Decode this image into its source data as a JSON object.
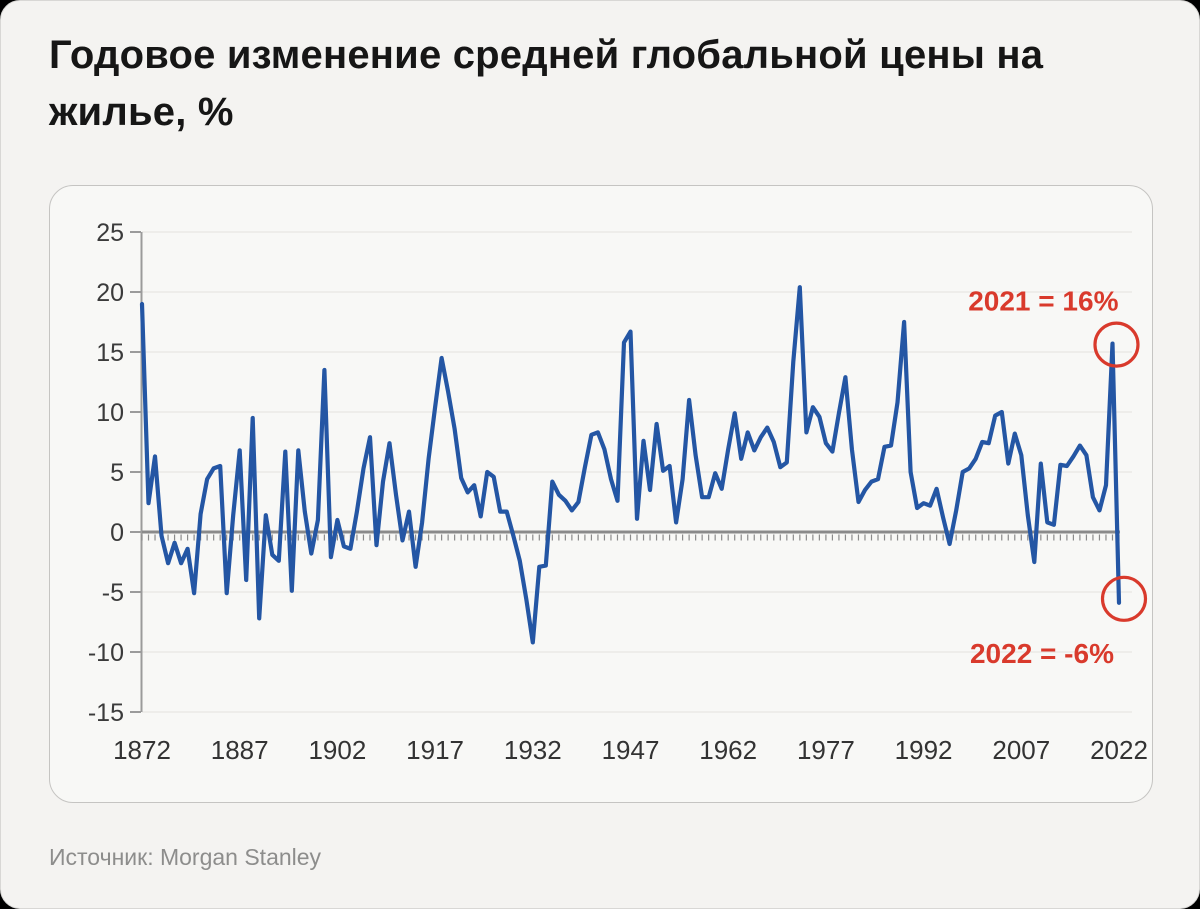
{
  "page": {
    "title": "Годовое изменение средней глобальной цены на жилье, %",
    "source": "Источник: Morgan Stanley"
  },
  "colors": {
    "line": "#2456a4",
    "annotation": "#d93a2c",
    "zero_axis": "#8a8a8a",
    "axis": "#9b9b9b",
    "grid": "#e7e6e4",
    "tick_text": "#3b3b3b",
    "background": "#f4f3f1",
    "card": "#f8f8f6"
  },
  "chart_data": {
    "type": "line",
    "title": "Годовое изменение средней глобальной цены на жилье, %",
    "xlabel": "",
    "ylabel": "",
    "x_start": 1872,
    "x_end": 2022,
    "ylim": [
      -15,
      25
    ],
    "grid": true,
    "y_ticks": [
      25,
      20,
      15,
      10,
      5,
      0,
      -5,
      -10,
      -15
    ],
    "x_tick_labels": [
      "1872",
      "1887",
      "1902",
      "1917",
      "1932",
      "1947",
      "1962",
      "1977",
      "1992",
      "2007",
      "2022"
    ],
    "series": [
      {
        "name": "annual-change-percent",
        "values": [
          19.0,
          2.4,
          6.3,
          -0.3,
          -2.6,
          -0.9,
          -2.6,
          -1.4,
          -5.1,
          1.5,
          4.4,
          5.3,
          5.5,
          -5.1,
          1.4,
          6.8,
          -4.0,
          9.5,
          -7.2,
          1.4,
          -1.9,
          -2.4,
          6.7,
          -4.9,
          6.8,
          1.7,
          -1.8,
          1.0,
          13.5,
          -2.1,
          1.0,
          -1.2,
          -1.4,
          1.7,
          5.3,
          7.9,
          -1.1,
          4.2,
          7.4,
          3.1,
          -0.7,
          1.7,
          -2.9,
          0.8,
          6.1,
          10.4,
          14.5,
          11.7,
          8.6,
          4.5,
          3.3,
          3.9,
          1.3,
          5.0,
          4.6,
          1.7,
          1.7,
          -0.3,
          -2.4,
          -5.6,
          -9.2,
          -2.9,
          -2.8,
          4.2,
          3.1,
          2.6,
          1.8,
          2.5,
          5.4,
          8.1,
          8.3,
          6.9,
          4.4,
          2.6,
          15.8,
          16.7,
          1.1,
          7.6,
          3.5,
          9.0,
          5.1,
          5.5,
          0.8,
          4.4,
          11.0,
          6.4,
          2.9,
          2.9,
          4.9,
          3.6,
          6.9,
          9.9,
          6.1,
          8.3,
          6.8,
          7.9,
          8.7,
          7.5,
          5.4,
          5.8,
          14.2,
          20.4,
          8.3,
          10.4,
          9.6,
          7.4,
          6.7,
          9.9,
          12.9,
          6.9,
          2.5,
          3.5,
          4.2,
          4.4,
          7.1,
          7.2,
          10.8,
          17.5,
          5.0,
          2.0,
          2.4,
          2.2,
          3.6,
          1.2,
          -1.0,
          1.8,
          5.0,
          5.3,
          6.1,
          7.5,
          7.4,
          9.7,
          10.0,
          5.7,
          8.2,
          6.4,
          1.4,
          -2.5,
          5.7,
          0.8,
          0.6,
          5.6,
          5.5,
          6.3,
          7.2,
          6.4,
          2.9,
          1.8,
          3.9,
          15.7,
          -5.9
        ]
      }
    ],
    "annotations": [
      {
        "text": "2021 = 16%",
        "year": 2021,
        "value": 15.7,
        "circled": true
      },
      {
        "text": "2022 = -6%",
        "year": 2022,
        "value": -5.9,
        "circled": true
      }
    ],
    "legend": "none"
  }
}
